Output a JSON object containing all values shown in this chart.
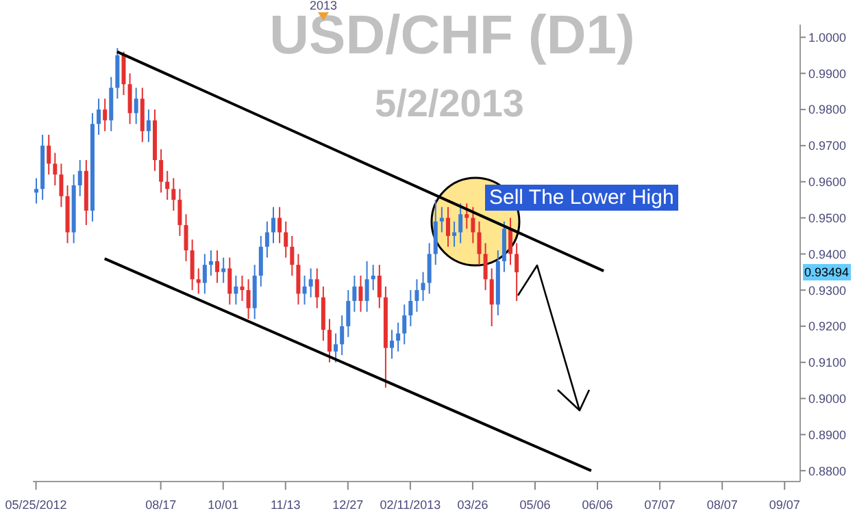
{
  "chart_data": {
    "type": "candlestick",
    "title": "USD/CHF (D1)",
    "subtitle": "5/2/2013",
    "annotations": [
      "Sell The Lower High",
      "2013",
      {
        "text": "0.93494",
        "y": 0.93494
      }
    ],
    "categories": [
      "05/25/2012",
      null,
      null,
      null,
      null,
      null,
      null,
      null,
      null,
      null,
      null,
      null,
      null,
      null,
      null,
      null,
      null,
      null,
      null,
      null,
      "08/17",
      null,
      null,
      null,
      null,
      null,
      null,
      null,
      null,
      null,
      "10/01",
      null,
      null,
      null,
      null,
      null,
      null,
      null,
      null,
      null,
      "11/13",
      null,
      null,
      null,
      null,
      null,
      null,
      null,
      null,
      null,
      "12/27",
      null,
      null,
      null,
      null,
      null,
      null,
      null,
      null,
      null,
      "02/11/2013",
      null,
      null,
      null,
      null,
      null,
      null,
      null,
      null,
      null,
      "03/26",
      null,
      null,
      null,
      null,
      null,
      null,
      null,
      null,
      null,
      "05/06",
      null,
      null,
      null,
      null,
      null,
      null,
      null,
      null,
      null,
      "06/06",
      null,
      null,
      null,
      null,
      null,
      null,
      null,
      null,
      null,
      "07/07",
      null,
      null,
      null,
      null,
      null,
      null,
      null,
      null,
      null,
      "08/07",
      null,
      null,
      null,
      null,
      null,
      null,
      null,
      null,
      null,
      "09/07",
      null,
      null
    ],
    "ohlc": [
      [
        0.957,
        0.961,
        0.954,
        0.958
      ],
      [
        0.958,
        0.973,
        0.955,
        0.97
      ],
      [
        0.97,
        0.973,
        0.962,
        0.965
      ],
      [
        0.965,
        0.968,
        0.959,
        0.962
      ],
      [
        0.962,
        0.965,
        0.953,
        0.956
      ],
      [
        0.956,
        0.959,
        0.943,
        0.946
      ],
      [
        0.946,
        0.962,
        0.943,
        0.959
      ],
      [
        0.959,
        0.966,
        0.956,
        0.963
      ],
      [
        0.963,
        0.966,
        0.948,
        0.952
      ],
      [
        0.952,
        0.979,
        0.949,
        0.976
      ],
      [
        0.976,
        0.983,
        0.973,
        0.98
      ],
      [
        0.98,
        0.983,
        0.974,
        0.977
      ],
      [
        0.977,
        0.989,
        0.974,
        0.986
      ],
      [
        0.986,
        0.997,
        0.983,
        0.995
      ],
      [
        0.995,
        0.996,
        0.984,
        0.987
      ],
      [
        0.987,
        0.99,
        0.976,
        0.979
      ],
      [
        0.979,
        0.986,
        0.976,
        0.983
      ],
      [
        0.983,
        0.986,
        0.971,
        0.974
      ],
      [
        0.974,
        0.98,
        0.971,
        0.977
      ],
      [
        0.977,
        0.98,
        0.963,
        0.966
      ],
      [
        0.966,
        0.969,
        0.957,
        0.96
      ],
      [
        0.96,
        0.963,
        0.955,
        0.958
      ],
      [
        0.958,
        0.961,
        0.952,
        0.955
      ],
      [
        0.955,
        0.958,
        0.945,
        0.948
      ],
      [
        0.948,
        0.951,
        0.938,
        0.941
      ],
      [
        0.941,
        0.944,
        0.93,
        0.933
      ],
      [
        0.933,
        0.936,
        0.929,
        0.932
      ],
      [
        0.932,
        0.94,
        0.929,
        0.937
      ],
      [
        0.937,
        0.941,
        0.934,
        0.938
      ],
      [
        0.938,
        0.941,
        0.932,
        0.935
      ],
      [
        0.935,
        0.939,
        0.932,
        0.936
      ],
      [
        0.936,
        0.939,
        0.926,
        0.929
      ],
      [
        0.929,
        0.934,
        0.926,
        0.931
      ],
      [
        0.931,
        0.934,
        0.927,
        0.93
      ],
      [
        0.93,
        0.933,
        0.922,
        0.925
      ],
      [
        0.925,
        0.937,
        0.922,
        0.934
      ],
      [
        0.934,
        0.945,
        0.931,
        0.942
      ],
      [
        0.942,
        0.949,
        0.939,
        0.946
      ],
      [
        0.946,
        0.953,
        0.943,
        0.95
      ],
      [
        0.95,
        0.953,
        0.943,
        0.946
      ],
      [
        0.946,
        0.949,
        0.939,
        0.942
      ],
      [
        0.942,
        0.945,
        0.934,
        0.937
      ],
      [
        0.937,
        0.94,
        0.926,
        0.929
      ],
      [
        0.929,
        0.934,
        0.926,
        0.931
      ],
      [
        0.931,
        0.936,
        0.928,
        0.933
      ],
      [
        0.933,
        0.936,
        0.925,
        0.928
      ],
      [
        0.928,
        0.931,
        0.916,
        0.919
      ],
      [
        0.919,
        0.922,
        0.91,
        0.913
      ],
      [
        0.913,
        0.918,
        0.91,
        0.915
      ],
      [
        0.915,
        0.923,
        0.912,
        0.92
      ],
      [
        0.92,
        0.93,
        0.917,
        0.927
      ],
      [
        0.927,
        0.934,
        0.924,
        0.931
      ],
      [
        0.931,
        0.934,
        0.924,
        0.927
      ],
      [
        0.927,
        0.938,
        0.924,
        0.933
      ],
      [
        0.933,
        0.937,
        0.93,
        0.934
      ],
      [
        0.934,
        0.937,
        0.925,
        0.928
      ],
      [
        0.928,
        0.931,
        0.903,
        0.914
      ],
      [
        0.914,
        0.919,
        0.911,
        0.916
      ],
      [
        0.916,
        0.921,
        0.913,
        0.918
      ],
      [
        0.918,
        0.926,
        0.915,
        0.923
      ],
      [
        0.923,
        0.93,
        0.92,
        0.927
      ],
      [
        0.927,
        0.933,
        0.924,
        0.93
      ],
      [
        0.93,
        0.935,
        0.927,
        0.932
      ],
      [
        0.932,
        0.943,
        0.929,
        0.94
      ],
      [
        0.94,
        0.955,
        0.937,
        0.949
      ],
      [
        0.949,
        0.953,
        0.946,
        0.95
      ],
      [
        0.95,
        0.953,
        0.942,
        0.945
      ],
      [
        0.945,
        0.949,
        0.942,
        0.946
      ],
      [
        0.946,
        0.954,
        0.943,
        0.951
      ],
      [
        0.951,
        0.954,
        0.947,
        0.95
      ],
      [
        0.95,
        0.953,
        0.943,
        0.946
      ],
      [
        0.946,
        0.949,
        0.937,
        0.94
      ],
      [
        0.94,
        0.943,
        0.93,
        0.933
      ],
      [
        0.933,
        0.936,
        0.92,
        0.926
      ],
      [
        0.926,
        0.941,
        0.923,
        0.938
      ],
      [
        0.938,
        0.949,
        0.935,
        0.947
      ],
      [
        0.947,
        0.95,
        0.937,
        0.94
      ],
      [
        0.94,
        0.943,
        0.927,
        0.93494
      ],
      null,
      null,
      null,
      null,
      null,
      null,
      null,
      null,
      null,
      null,
      null,
      null,
      null,
      null,
      null,
      null,
      null,
      null,
      null,
      null,
      null,
      null,
      null,
      null,
      null,
      null,
      null,
      null,
      null,
      null,
      null,
      null,
      null,
      null,
      null,
      null,
      null,
      null,
      null,
      null,
      null,
      null,
      null,
      null,
      null
    ],
    "colors": [
      "#3a7bd5",
      "#3a7bd5",
      "#e53030",
      "#e53030",
      "#e53030",
      "#e53030",
      "#3a7bd5",
      "#3a7bd5",
      "#e53030",
      "#3a7bd5",
      "#3a7bd5",
      "#e53030",
      "#3a7bd5",
      "#3a7bd5",
      "#e53030",
      "#e53030",
      "#3a7bd5",
      "#e53030",
      "#3a7bd5",
      "#e53030",
      "#e53030",
      "#e53030",
      "#e53030",
      "#e53030",
      "#e53030",
      "#e53030",
      "#e53030",
      "#3a7bd5",
      "#3a7bd5",
      "#e53030",
      "#3a7bd5",
      "#e53030",
      "#3a7bd5",
      "#e53030",
      "#e53030",
      "#3a7bd5",
      "#3a7bd5",
      "#3a7bd5",
      "#3a7bd5",
      "#e53030",
      "#e53030",
      "#e53030",
      "#e53030",
      "#3a7bd5",
      "#3a7bd5",
      "#e53030",
      "#e53030",
      "#e53030",
      "#3a7bd5",
      "#3a7bd5",
      "#3a7bd5",
      "#3a7bd5",
      "#e53030",
      "#3a7bd5",
      "#3a7bd5",
      "#e53030",
      "#e53030",
      "#3a7bd5",
      "#3a7bd5",
      "#3a7bd5",
      "#3a7bd5",
      "#3a7bd5",
      "#3a7bd5",
      "#3a7bd5",
      "#3a7bd5",
      "#3a7bd5",
      "#e53030",
      "#3a7bd5",
      "#3a7bd5",
      "#e53030",
      "#e53030",
      "#e53030",
      "#e53030",
      "#e53030",
      "#3a7bd5",
      "#3a7bd5",
      "#e53030",
      "#e53030",
      null,
      null,
      null,
      null,
      null,
      null,
      null,
      null,
      null,
      null,
      null,
      null,
      null,
      null,
      null,
      null,
      null,
      null,
      null,
      null,
      null,
      null,
      null,
      null,
      null,
      null,
      null,
      null,
      null,
      null,
      null,
      null,
      null,
      null,
      null,
      null,
      null,
      null,
      null,
      null,
      null,
      null,
      null,
      null,
      null
    ],
    "series": [
      {
        "type": "line",
        "color": "#000000",
        "values": [
          null,
          null,
          null,
          null,
          null,
          null,
          null,
          null,
          null,
          null,
          null,
          null,
          null,
          0.996,
          null,
          null,
          null,
          null,
          null,
          null,
          null,
          null,
          null,
          null,
          null,
          null,
          null,
          null,
          null,
          null,
          null,
          null,
          null,
          null,
          null,
          null,
          null,
          null,
          null,
          null,
          null,
          null,
          null,
          null,
          null,
          null,
          null,
          null,
          null,
          null,
          null,
          null,
          null,
          null,
          null,
          null,
          null,
          null,
          null,
          null,
          null,
          null,
          null,
          null,
          null,
          null,
          null,
          null,
          null,
          null,
          null,
          null,
          null,
          null,
          null,
          null,
          null,
          null,
          null,
          null,
          null,
          null,
          null,
          null,
          null,
          null,
          null,
          null,
          null,
          null,
          null,
          0.9353,
          null,
          null,
          null,
          null,
          null,
          null,
          null,
          null,
          null,
          null,
          null,
          null,
          null,
          null,
          null,
          null,
          null,
          null,
          null,
          null,
          null,
          null,
          null,
          null,
          null,
          null,
          null,
          null,
          null,
          null,
          null
        ]
      },
      {
        "type": "line",
        "color": "#000000",
        "values": [
          null,
          null,
          null,
          null,
          null,
          null,
          null,
          null,
          null,
          null,
          null,
          0.9387,
          null,
          null,
          null,
          null,
          null,
          null,
          null,
          null,
          null,
          null,
          null,
          null,
          null,
          null,
          null,
          null,
          null,
          null,
          null,
          null,
          null,
          null,
          null,
          null,
          null,
          null,
          null,
          null,
          null,
          null,
          null,
          null,
          null,
          null,
          null,
          null,
          null,
          null,
          null,
          null,
          null,
          null,
          null,
          null,
          null,
          null,
          null,
          null,
          null,
          null,
          null,
          null,
          null,
          null,
          null,
          null,
          null,
          null,
          null,
          null,
          null,
          null,
          null,
          null,
          null,
          null,
          null,
          null,
          null,
          null,
          null,
          null,
          null,
          null,
          null,
          null,
          null,
          0.88,
          null,
          null,
          null,
          null,
          null,
          null,
          null,
          null,
          null,
          null,
          null,
          null,
          null,
          null,
          null,
          null,
          null,
          null,
          null,
          null,
          null,
          null,
          null,
          null,
          null,
          null,
          null,
          null,
          null,
          null,
          null,
          null,
          null
        ]
      }
    ],
    "ylim": [
      0.877,
      1.0035
    ],
    "yticks": [
      {
        "value": 0.88,
        "label": "0.8800"
      },
      {
        "value": 0.89,
        "label": "0.8900"
      },
      {
        "value": 0.9,
        "label": "0.9000"
      },
      {
        "value": 0.91,
        "label": "0.9100"
      },
      {
        "value": 0.92,
        "label": "0.9200"
      },
      {
        "value": 0.93,
        "label": "0.9300"
      },
      {
        "value": 0.94,
        "label": "0.9400"
      },
      {
        "value": 0.95,
        "label": "0.9500"
      },
      {
        "value": 0.96,
        "label": "0.9600"
      },
      {
        "value": 0.97,
        "label": "0.9700"
      },
      {
        "value": 0.98,
        "label": "0.9800"
      },
      {
        "value": 0.99,
        "label": "0.9900"
      },
      {
        "value": 1.0,
        "label": "1.0000"
      }
    ]
  }
}
